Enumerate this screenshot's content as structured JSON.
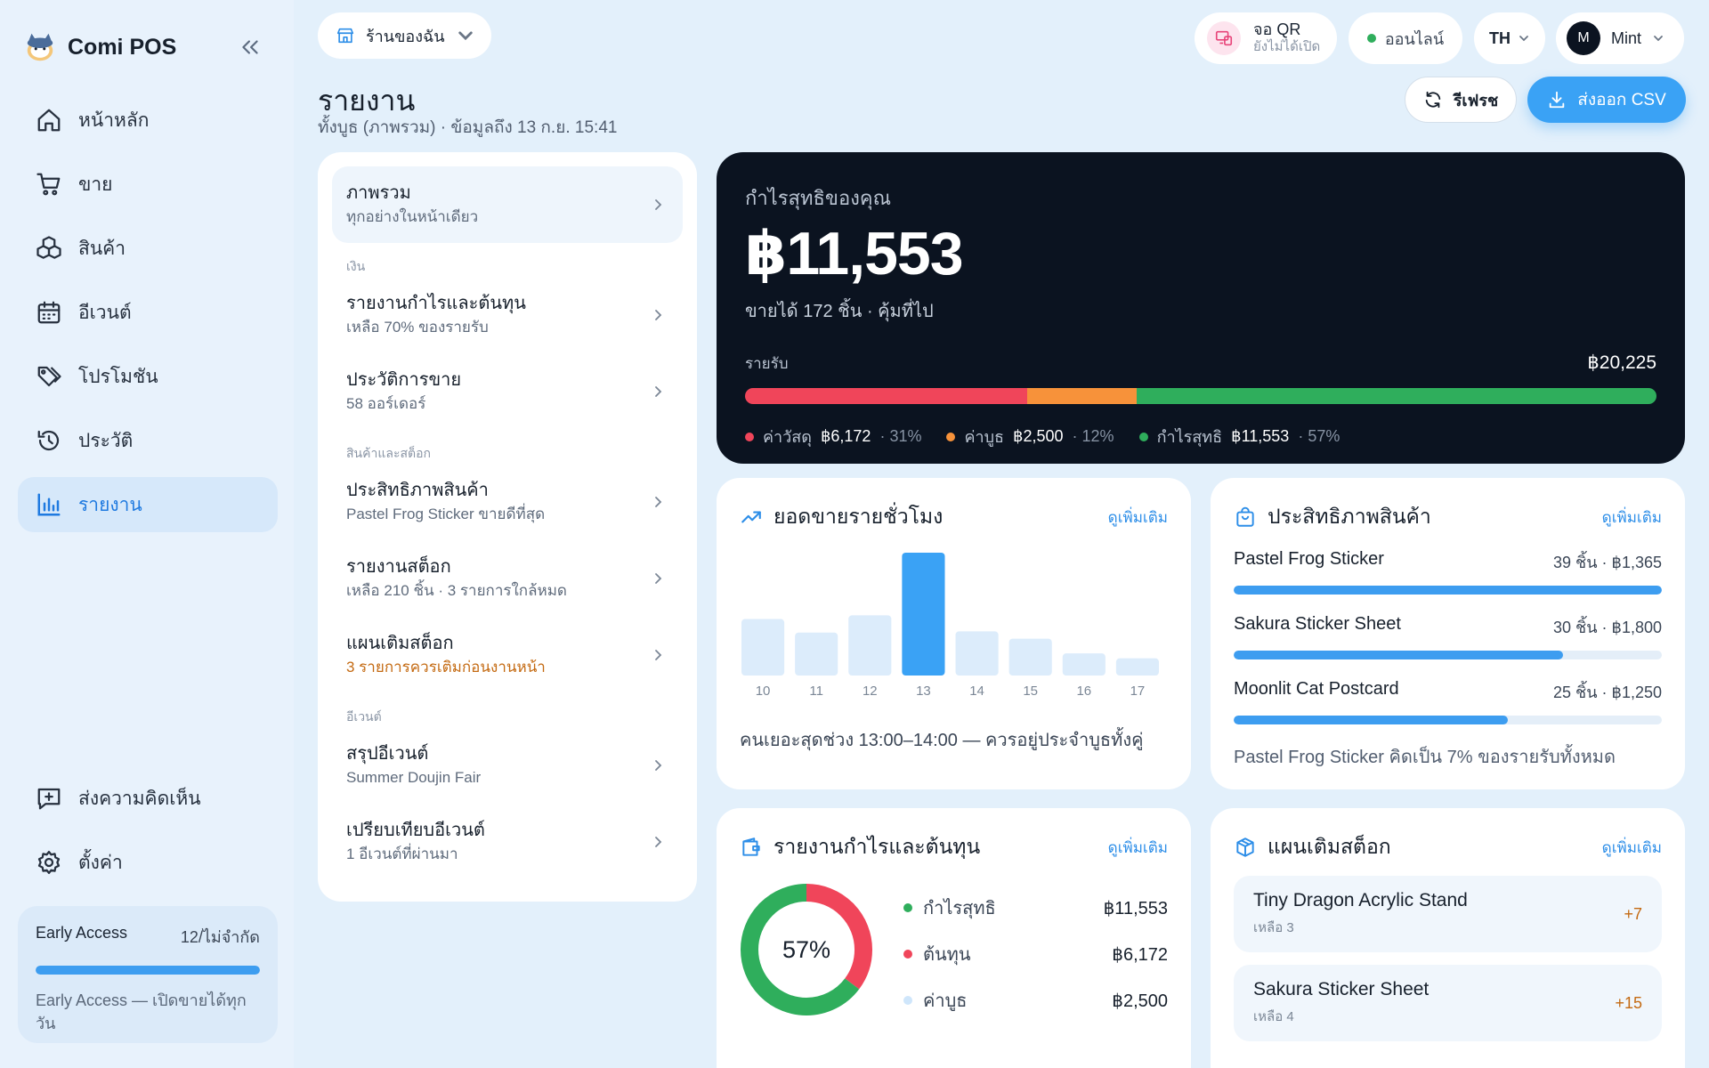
{
  "app": {
    "name": "Comi POS"
  },
  "sidebar": {
    "items": [
      {
        "label": "หน้าหลัก",
        "icon": "home-icon"
      },
      {
        "label": "ขาย",
        "icon": "cart-icon"
      },
      {
        "label": "สินค้า",
        "icon": "boxes-icon"
      },
      {
        "label": "อีเวนต์",
        "icon": "calendar-icon"
      },
      {
        "label": "โปรโมชัน",
        "icon": "tag-icon"
      },
      {
        "label": "ประวัติ",
        "icon": "history-icon"
      },
      {
        "label": "รายงาน",
        "icon": "bar-chart-icon",
        "active": true
      }
    ],
    "bottom": [
      {
        "label": "ส่งความคิดเห็น",
        "icon": "feedback-icon"
      },
      {
        "label": "ตั้งค่า",
        "icon": "gear-icon"
      }
    ],
    "early_access": {
      "title": "Early Access",
      "count": "12/ไม่จำกัด",
      "progress": 1.0,
      "desc": "Early Access — เปิดขายได้ทุกวัน"
    }
  },
  "topbar": {
    "store": "ร้านของฉัน",
    "qr": {
      "title": "จอ QR",
      "status": "ยังไม่ได้เปิด"
    },
    "online": "ออนไลน์",
    "lang": "TH",
    "user": {
      "initial": "M",
      "name": "Mint"
    }
  },
  "header": {
    "title": "รายงาน",
    "subtitle": "ทั้งบูธ (ภาพรวม) · ข้อมูลถึง 13 ก.ย. 15:41",
    "refresh": "รีเฟรช",
    "export": "ส่งออก CSV"
  },
  "menu": {
    "overview": {
      "title": "ภาพรวม",
      "sub": "ทุกอย่างในหน้าเดียว"
    },
    "sections": [
      {
        "label": "เงิน",
        "items": [
          {
            "title": "รายงานกำไรและต้นทุน",
            "sub": "เหลือ 70% ของรายรับ"
          },
          {
            "title": "ประวัติการขาย",
            "sub": "58 ออร์เดอร์"
          }
        ]
      },
      {
        "label": "สินค้าและสต็อก",
        "items": [
          {
            "title": "ประสิทธิภาพสินค้า",
            "sub": "Pastel Frog Sticker ขายดีที่สุด"
          },
          {
            "title": "รายงานสต็อก",
            "sub": "เหลือ 210 ชิ้น · 3 รายการใกล้หมด"
          },
          {
            "title": "แผนเติมสต็อก",
            "sub": "3 รายการควรเติมก่อนงานหน้า",
            "warn": true
          }
        ]
      },
      {
        "label": "อีเวนต์",
        "items": [
          {
            "title": "สรุปอีเวนต์",
            "sub": "Summer Doujin Fair"
          },
          {
            "title": "เปรียบเทียบอีเวนต์",
            "sub": "1 อีเวนต์ที่ผ่านมา"
          }
        ]
      }
    ]
  },
  "profit": {
    "label": "กำไรสุทธิของคุณ",
    "amount": "฿11,553",
    "sub": "ขายได้ 172 ชิ้น · คุ้มที่ไป",
    "revenue_label": "รายรับ",
    "revenue": "฿20,225",
    "segments": [
      {
        "name": "ค่าวัสดุ",
        "amount": "฿6,172",
        "pct": "31%",
        "share": 31,
        "color": "#f0455a"
      },
      {
        "name": "ค่าบูธ",
        "amount": "฿2,500",
        "pct": "12%",
        "share": 12,
        "color": "#f7923a"
      },
      {
        "name": "กำไรสุทธิ",
        "amount": "฿11,553",
        "pct": "57%",
        "share": 57,
        "color": "#2fae5c"
      }
    ]
  },
  "hourly": {
    "title": "ยอดขายรายชั่วโมง",
    "more": "ดูเพิ่มเติม",
    "note": "คนเยอะสุดช่วง 13:00–14:00 — ควรอยู่ประจำบูธทั้งคู่"
  },
  "chart_data": {
    "type": "bar",
    "categories": [
      "10",
      "11",
      "12",
      "13",
      "14",
      "15",
      "16",
      "17"
    ],
    "values": [
      46,
      35,
      49,
      100,
      36,
      30,
      18,
      14
    ],
    "highlight_index": 3,
    "colors": {
      "bar": "#dcecfb",
      "highlight": "#3aa2f5"
    }
  },
  "performance": {
    "title": "ประสิทธิภาพสินค้า",
    "more": "ดูเพิ่มเติม",
    "items": [
      {
        "name": "Pastel Frog Sticker",
        "value": "39 ชิ้น · ฿1,365",
        "progress": 100
      },
      {
        "name": "Sakura Sticker Sheet",
        "value": "30 ชิ้น · ฿1,800",
        "progress": 77
      },
      {
        "name": "Moonlit Cat Postcard",
        "value": "25 ชิ้น · ฿1,250",
        "progress": 64
      }
    ],
    "note": "Pastel Frog Sticker คิดเป็น 7% ของรายรับทั้งหมด"
  },
  "pl": {
    "title": "รายงานกำไรและต้นทุน",
    "more": "ดูเพิ่มเติม",
    "center": "57%",
    "rows": [
      {
        "name": "กำไรสุทธิ",
        "value": "฿11,553",
        "color": "#2fae5c",
        "share": 57
      },
      {
        "name": "ต้นทุน",
        "value": "฿6,172",
        "color": "#f0455a",
        "share": 31
      },
      {
        "name": "ค่าบูธ",
        "value": "฿2,500",
        "color": "#cfe6fb",
        "share": 12
      }
    ]
  },
  "restock": {
    "title": "แผนเติมสต็อก",
    "more": "ดูเพิ่มเติม",
    "items": [
      {
        "name": "Tiny Dragon Acrylic Stand",
        "sub": "เหลือ 3",
        "add": "+7"
      },
      {
        "name": "Sakura Sticker Sheet",
        "sub": "เหลือ 4",
        "add": "+15"
      }
    ]
  }
}
